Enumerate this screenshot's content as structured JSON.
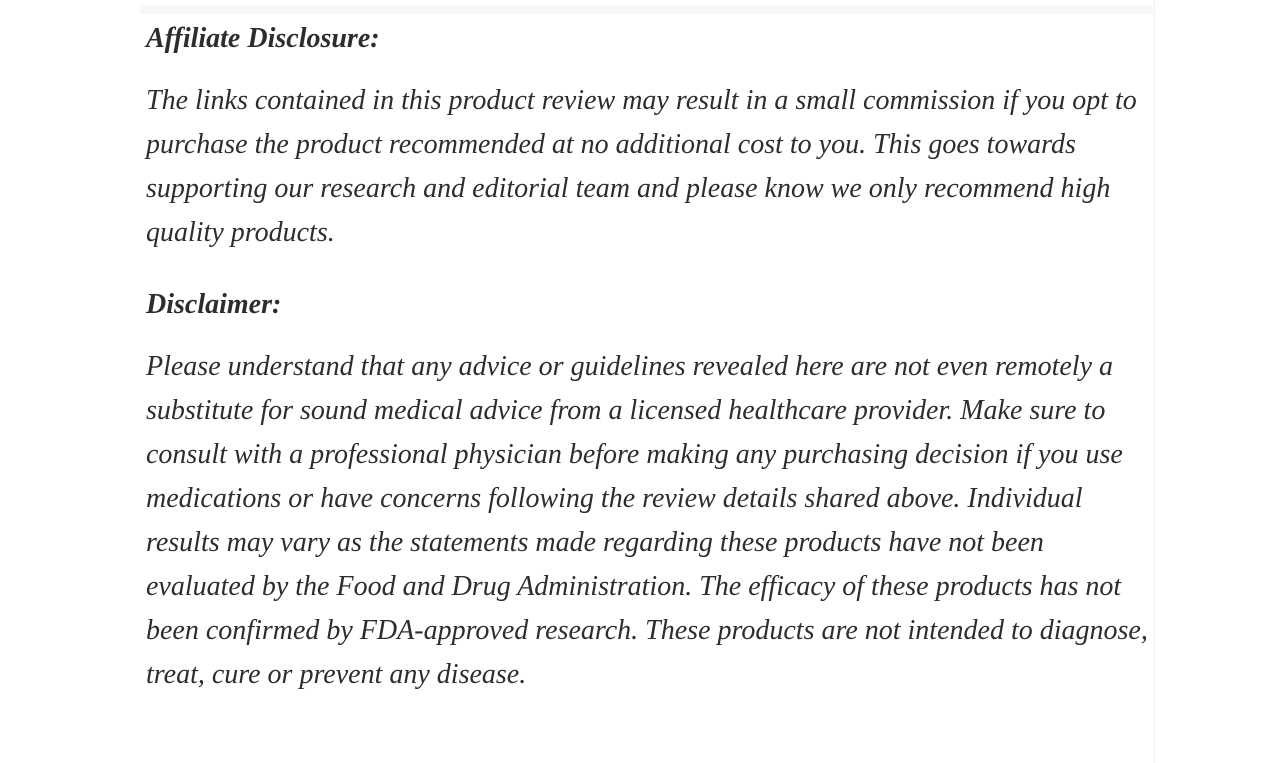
{
  "article": {
    "sections": [
      {
        "type": "heading",
        "text": "Affiliate Disclosure:"
      },
      {
        "type": "paragraph",
        "text": "The links contained in this product review may result in a small commission if you opt to purchase the product recommended at no additional cost to you. This goes towards supporting our research and editorial team and please know we only recommend high quality products."
      },
      {
        "type": "heading",
        "text": "Disclaimer:"
      },
      {
        "type": "paragraph",
        "text": "Please understand that any advice or guidelines revealed here are not even remotely a substitute for sound medical advice from a licensed healthcare provider. Make sure to consult with a professional physician before making any purchasing decision if you use medications or have concerns following the review details shared above. Individual results may vary as the statements made regarding these products have not been evaluated by the Food and Drug Administration. The efficacy of these products has not been confirmed by FDA-approved research. These products are not intended to diagnose, treat, cure or prevent any disease."
      }
    ]
  },
  "colors": {
    "text": "#2d2d2d",
    "background": "#ffffff",
    "column_divider": "#f0f0f0",
    "preceding_block_edge": "#f8f7f5"
  }
}
